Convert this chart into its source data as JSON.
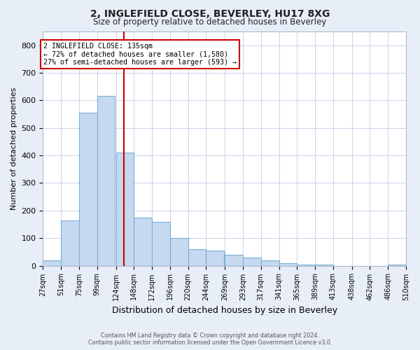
{
  "title_line1": "2, INGLEFIELD CLOSE, BEVERLEY, HU17 8XG",
  "title_line2": "Size of property relative to detached houses in Beverley",
  "xlabel": "Distribution of detached houses by size in Beverley",
  "ylabel": "Number of detached properties",
  "footer_line1": "Contains HM Land Registry data © Crown copyright and database right 2024.",
  "footer_line2": "Contains public sector information licensed under the Open Government Licence v3.0.",
  "property_label": "2 INGLEFIELD CLOSE: 135sqm",
  "annotation_line1": "← 72% of detached houses are smaller (1,580)",
  "annotation_line2": "27% of semi-detached houses are larger (593) →",
  "bar_left_edges": [
    27,
    51,
    75,
    99,
    124,
    148,
    172,
    196,
    220,
    244,
    269,
    293,
    317,
    341,
    365,
    389,
    413,
    438,
    462,
    486
  ],
  "bar_widths": [
    24,
    24,
    24,
    24,
    24,
    24,
    24,
    24,
    24,
    24,
    24,
    24,
    24,
    24,
    24,
    24,
    24,
    24,
    24,
    24
  ],
  "bar_heights": [
    20,
    165,
    555,
    615,
    410,
    175,
    160,
    100,
    60,
    55,
    40,
    30,
    20,
    10,
    5,
    5,
    0,
    0,
    0,
    5
  ],
  "bar_color": "#c5d9f0",
  "bar_edge_color": "#7bafd4",
  "red_line_x": 135,
  "ylim": [
    0,
    850
  ],
  "yticks": [
    0,
    100,
    200,
    300,
    400,
    500,
    600,
    700,
    800
  ],
  "tick_labels": [
    "27sqm",
    "51sqm",
    "75sqm",
    "99sqm",
    "124sqm",
    "148sqm",
    "172sqm",
    "196sqm",
    "220sqm",
    "244sqm",
    "269sqm",
    "293sqm",
    "317sqm",
    "341sqm",
    "365sqm",
    "389sqm",
    "413sqm",
    "438sqm",
    "462sqm",
    "486sqm",
    "510sqm"
  ],
  "grid_color": "#c8d4e8",
  "fig_bg_color": "#e8eef8",
  "plot_bg_color": "#ffffff"
}
